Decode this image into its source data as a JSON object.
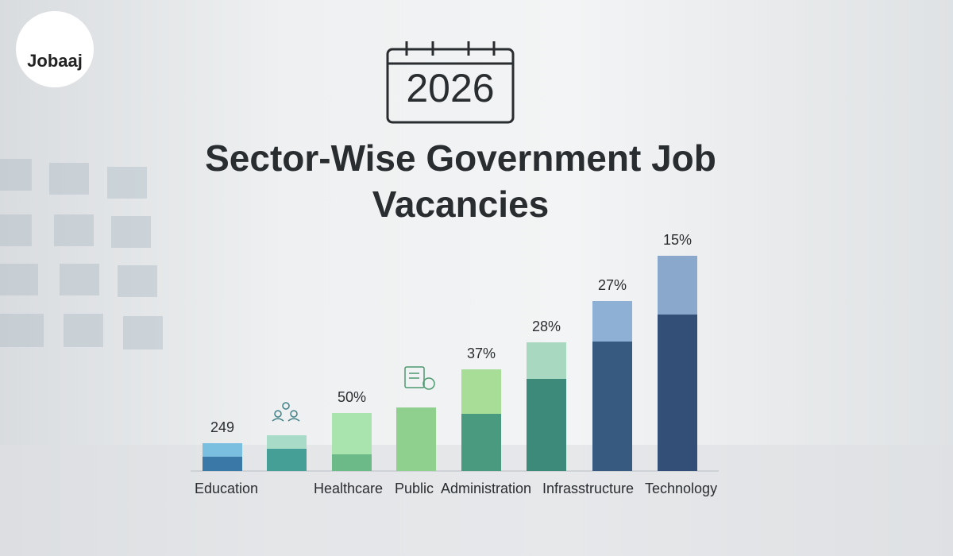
{
  "logo": "Jobaaj",
  "chart_data": {
    "type": "stacked-bar",
    "badge": "2026",
    "title": "Sector-Wise Government Job Vacancies",
    "categories": [
      "Education",
      null,
      "Healthcare",
      "Public",
      "Administration",
      null,
      "Infrasstructure",
      "Technology"
    ],
    "labels": [
      "249",
      null,
      "50%",
      null,
      "37%",
      "28%",
      "27%",
      "15%"
    ],
    "series": [
      {
        "values": [
          18,
          28,
          21,
          80,
          72,
          116,
          163,
          197
        ],
        "colors": [
          "#3a78a8",
          "#469f96",
          "#6cba87",
          "#8fd08f",
          "#4a9a80",
          "#3e8a7a",
          "#365a80",
          "#334f78"
        ]
      },
      {
        "values": [
          17,
          17,
          52,
          0,
          56,
          46,
          51,
          74
        ],
        "colors": [
          "#7bbfe0",
          "#a8dcc8",
          "#a9e3ae",
          "#8fd08f",
          "#a8dd98",
          "#a8d8c0",
          "#8eb0d4",
          "#8aa8cc"
        ]
      }
    ],
    "ylim": [
      0,
      300
    ]
  }
}
